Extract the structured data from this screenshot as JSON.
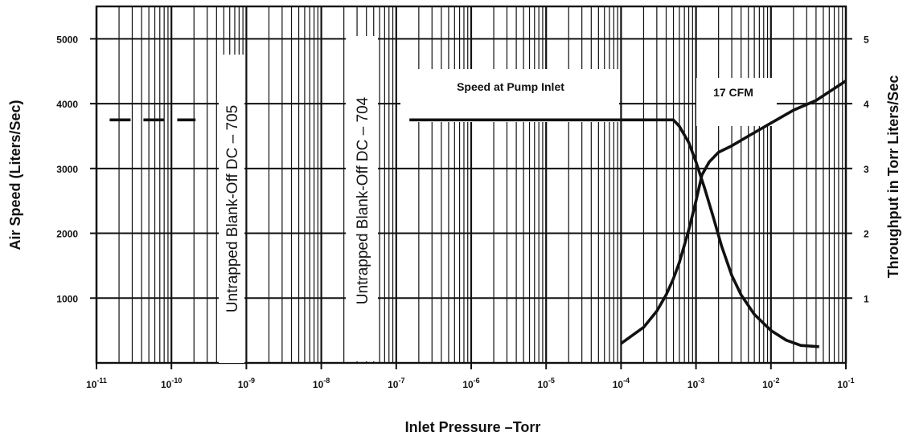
{
  "chart_data": {
    "type": "line",
    "title": "",
    "xlabel": "Inlet Pressure –Torr",
    "ylabel": "Air Speed (Liters/Sec)",
    "y2label": "Throughput in Torr Liters/Sec",
    "x_scale": "log",
    "xlim": [
      1e-11,
      0.1
    ],
    "ylim": [
      0,
      5500
    ],
    "y2lim": [
      0,
      5.5
    ],
    "grid": true,
    "x_tick_exponents": [
      "-11",
      "-10",
      "-9",
      "-8",
      "-7",
      "-6",
      "-5",
      "-4",
      "-3",
      "-2",
      "-1"
    ],
    "x_tick_base": "10",
    "y_ticks": [
      "1000",
      "2000",
      "3000",
      "4000",
      "5000"
    ],
    "y2_ticks": [
      "1",
      "2",
      "3",
      "4",
      "5"
    ],
    "series": [
      {
        "axis": "left",
        "style": "solid",
        "x": [
          1.5e-07,
          1e-06,
          1e-05,
          0.0001,
          0.0003,
          0.0005,
          0.0006,
          0.0008,
          0.001,
          0.0013,
          0.0017,
          0.0022,
          0.003,
          0.004,
          0.006,
          0.01,
          0.016,
          0.025,
          0.044
        ],
        "y": [
          3750,
          3750,
          3750,
          3750,
          3750,
          3750,
          3650,
          3400,
          3100,
          2700,
          2250,
          1800,
          1350,
          1050,
          750,
          500,
          350,
          270,
          250
        ]
      },
      {
        "axis": "left",
        "style": "dashed",
        "x": [
          1.5e-11,
          5e-11,
          2.1e-10
        ],
        "y": [
          3750,
          3750,
          3750
        ]
      },
      {
        "axis": "right",
        "style": "solid",
        "x": [
          0.0001,
          0.0002,
          0.0003,
          0.0004,
          0.0005,
          0.0006,
          0.0008,
          0.001,
          0.0012,
          0.0015,
          0.002,
          0.003,
          0.005,
          0.01,
          0.02,
          0.04,
          0.1
        ],
        "y": [
          0.3,
          0.55,
          0.8,
          1.05,
          1.3,
          1.55,
          2.05,
          2.5,
          2.9,
          3.1,
          3.25,
          3.35,
          3.5,
          3.7,
          3.9,
          4.05,
          4.35
        ]
      }
    ],
    "annotations": {
      "vertical_left": "Untrapped Blank-Off DC – 705",
      "vertical_right": "Untrapped Blank-Off DC – 704",
      "speed_box": "Speed at Pump Inlet",
      "cfm_box": "17 CFM"
    }
  }
}
